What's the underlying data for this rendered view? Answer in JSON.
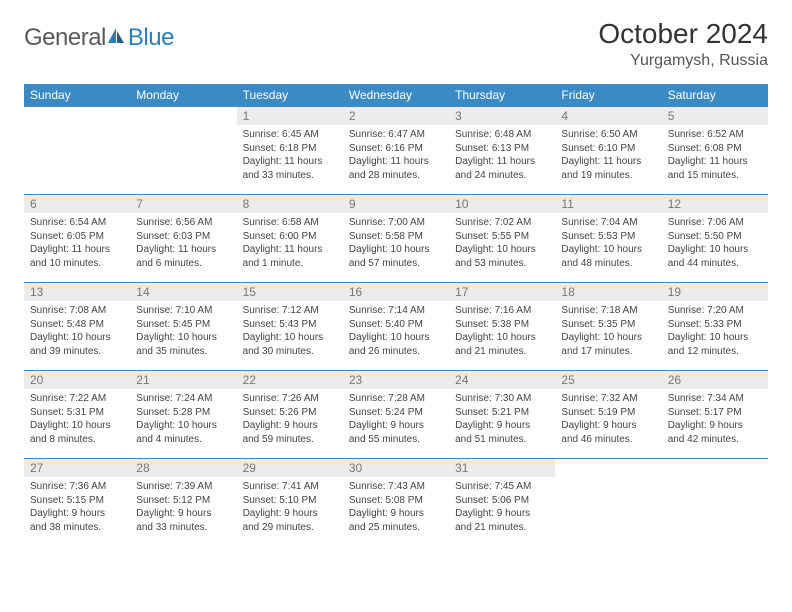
{
  "brand": {
    "part1": "General",
    "part2": "Blue"
  },
  "title": "October 2024",
  "location": "Yurgamysh, Russia",
  "colors": {
    "header_bg": "#3b8ac4",
    "header_fg": "#ffffff",
    "daynum_bg": "#ececec",
    "daynum_fg": "#777777",
    "border": "#3b8ac4",
    "text": "#444444"
  },
  "weekdays": [
    "Sunday",
    "Monday",
    "Tuesday",
    "Wednesday",
    "Thursday",
    "Friday",
    "Saturday"
  ],
  "weeks": [
    [
      null,
      null,
      {
        "n": "1",
        "sr": "Sunrise: 6:45 AM",
        "ss": "Sunset: 6:18 PM",
        "dl": "Daylight: 11 hours and 33 minutes."
      },
      {
        "n": "2",
        "sr": "Sunrise: 6:47 AM",
        "ss": "Sunset: 6:16 PM",
        "dl": "Daylight: 11 hours and 28 minutes."
      },
      {
        "n": "3",
        "sr": "Sunrise: 6:48 AM",
        "ss": "Sunset: 6:13 PM",
        "dl": "Daylight: 11 hours and 24 minutes."
      },
      {
        "n": "4",
        "sr": "Sunrise: 6:50 AM",
        "ss": "Sunset: 6:10 PM",
        "dl": "Daylight: 11 hours and 19 minutes."
      },
      {
        "n": "5",
        "sr": "Sunrise: 6:52 AM",
        "ss": "Sunset: 6:08 PM",
        "dl": "Daylight: 11 hours and 15 minutes."
      }
    ],
    [
      {
        "n": "6",
        "sr": "Sunrise: 6:54 AM",
        "ss": "Sunset: 6:05 PM",
        "dl": "Daylight: 11 hours and 10 minutes."
      },
      {
        "n": "7",
        "sr": "Sunrise: 6:56 AM",
        "ss": "Sunset: 6:03 PM",
        "dl": "Daylight: 11 hours and 6 minutes."
      },
      {
        "n": "8",
        "sr": "Sunrise: 6:58 AM",
        "ss": "Sunset: 6:00 PM",
        "dl": "Daylight: 11 hours and 1 minute."
      },
      {
        "n": "9",
        "sr": "Sunrise: 7:00 AM",
        "ss": "Sunset: 5:58 PM",
        "dl": "Daylight: 10 hours and 57 minutes."
      },
      {
        "n": "10",
        "sr": "Sunrise: 7:02 AM",
        "ss": "Sunset: 5:55 PM",
        "dl": "Daylight: 10 hours and 53 minutes."
      },
      {
        "n": "11",
        "sr": "Sunrise: 7:04 AM",
        "ss": "Sunset: 5:53 PM",
        "dl": "Daylight: 10 hours and 48 minutes."
      },
      {
        "n": "12",
        "sr": "Sunrise: 7:06 AM",
        "ss": "Sunset: 5:50 PM",
        "dl": "Daylight: 10 hours and 44 minutes."
      }
    ],
    [
      {
        "n": "13",
        "sr": "Sunrise: 7:08 AM",
        "ss": "Sunset: 5:48 PM",
        "dl": "Daylight: 10 hours and 39 minutes."
      },
      {
        "n": "14",
        "sr": "Sunrise: 7:10 AM",
        "ss": "Sunset: 5:45 PM",
        "dl": "Daylight: 10 hours and 35 minutes."
      },
      {
        "n": "15",
        "sr": "Sunrise: 7:12 AM",
        "ss": "Sunset: 5:43 PM",
        "dl": "Daylight: 10 hours and 30 minutes."
      },
      {
        "n": "16",
        "sr": "Sunrise: 7:14 AM",
        "ss": "Sunset: 5:40 PM",
        "dl": "Daylight: 10 hours and 26 minutes."
      },
      {
        "n": "17",
        "sr": "Sunrise: 7:16 AM",
        "ss": "Sunset: 5:38 PM",
        "dl": "Daylight: 10 hours and 21 minutes."
      },
      {
        "n": "18",
        "sr": "Sunrise: 7:18 AM",
        "ss": "Sunset: 5:35 PM",
        "dl": "Daylight: 10 hours and 17 minutes."
      },
      {
        "n": "19",
        "sr": "Sunrise: 7:20 AM",
        "ss": "Sunset: 5:33 PM",
        "dl": "Daylight: 10 hours and 12 minutes."
      }
    ],
    [
      {
        "n": "20",
        "sr": "Sunrise: 7:22 AM",
        "ss": "Sunset: 5:31 PM",
        "dl": "Daylight: 10 hours and 8 minutes."
      },
      {
        "n": "21",
        "sr": "Sunrise: 7:24 AM",
        "ss": "Sunset: 5:28 PM",
        "dl": "Daylight: 10 hours and 4 minutes."
      },
      {
        "n": "22",
        "sr": "Sunrise: 7:26 AM",
        "ss": "Sunset: 5:26 PM",
        "dl": "Daylight: 9 hours and 59 minutes."
      },
      {
        "n": "23",
        "sr": "Sunrise: 7:28 AM",
        "ss": "Sunset: 5:24 PM",
        "dl": "Daylight: 9 hours and 55 minutes."
      },
      {
        "n": "24",
        "sr": "Sunrise: 7:30 AM",
        "ss": "Sunset: 5:21 PM",
        "dl": "Daylight: 9 hours and 51 minutes."
      },
      {
        "n": "25",
        "sr": "Sunrise: 7:32 AM",
        "ss": "Sunset: 5:19 PM",
        "dl": "Daylight: 9 hours and 46 minutes."
      },
      {
        "n": "26",
        "sr": "Sunrise: 7:34 AM",
        "ss": "Sunset: 5:17 PM",
        "dl": "Daylight: 9 hours and 42 minutes."
      }
    ],
    [
      {
        "n": "27",
        "sr": "Sunrise: 7:36 AM",
        "ss": "Sunset: 5:15 PM",
        "dl": "Daylight: 9 hours and 38 minutes."
      },
      {
        "n": "28",
        "sr": "Sunrise: 7:39 AM",
        "ss": "Sunset: 5:12 PM",
        "dl": "Daylight: 9 hours and 33 minutes."
      },
      {
        "n": "29",
        "sr": "Sunrise: 7:41 AM",
        "ss": "Sunset: 5:10 PM",
        "dl": "Daylight: 9 hours and 29 minutes."
      },
      {
        "n": "30",
        "sr": "Sunrise: 7:43 AM",
        "ss": "Sunset: 5:08 PM",
        "dl": "Daylight: 9 hours and 25 minutes."
      },
      {
        "n": "31",
        "sr": "Sunrise: 7:45 AM",
        "ss": "Sunset: 5:06 PM",
        "dl": "Daylight: 9 hours and 21 minutes."
      },
      null,
      null
    ]
  ]
}
